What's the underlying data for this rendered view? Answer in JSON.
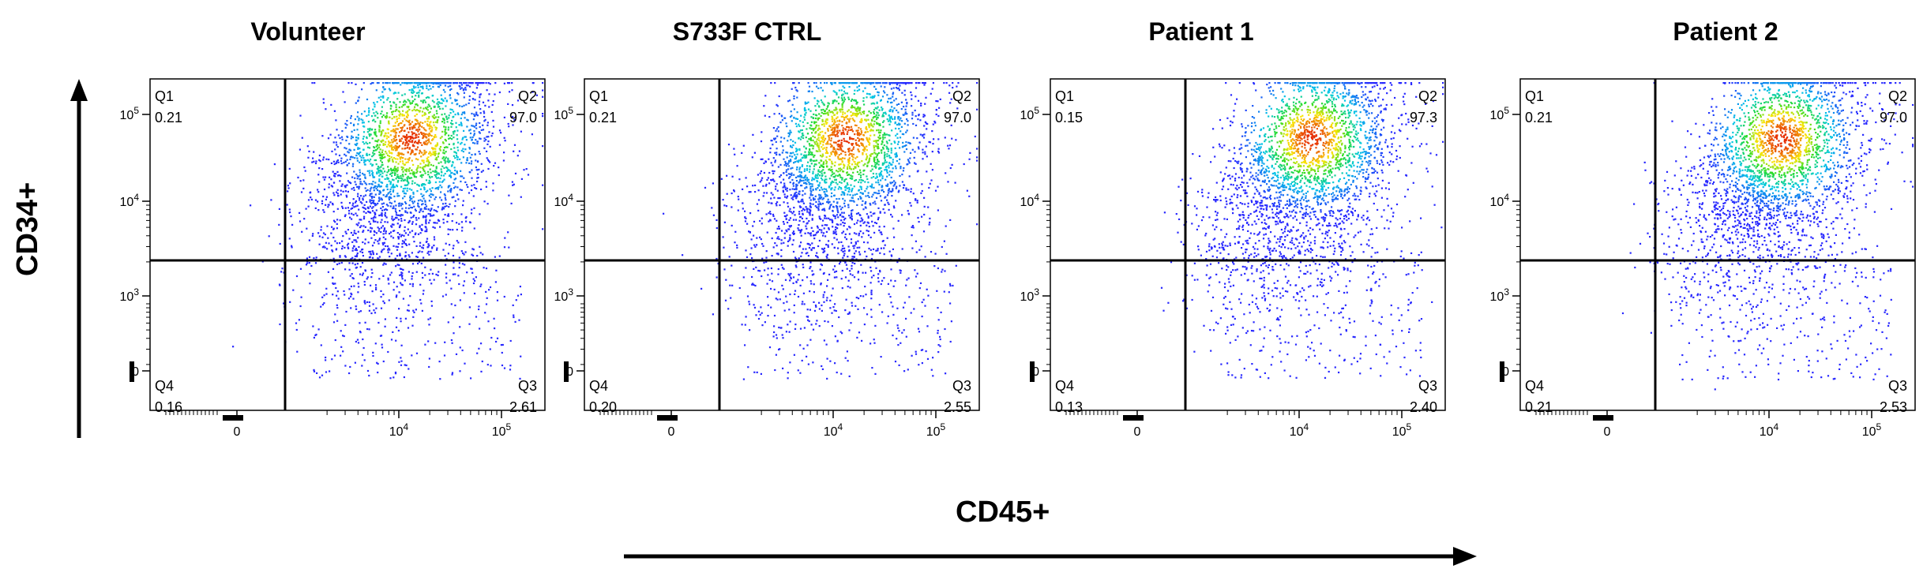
{
  "figure": {
    "y_axis_label": "CD34+",
    "x_axis_label": "CD45+"
  },
  "chart_data": [
    {
      "type": "scatter",
      "title": "Volunteer",
      "xlabel": "CD45+",
      "ylabel": "CD34+",
      "x_ticks": [
        "0",
        "10^4",
        "10^5"
      ],
      "y_ticks": [
        "0",
        "10^3",
        "10^4",
        "10^5"
      ],
      "quadrants": [
        {
          "label": "Q1",
          "value": "0.21"
        },
        {
          "label": "Q2",
          "value": "97.0"
        },
        {
          "label": "Q3",
          "value": "2.61"
        },
        {
          "label": "Q4",
          "value": "0.16"
        }
      ]
    },
    {
      "type": "scatter",
      "title": "S733F CTRL",
      "xlabel": "CD45+",
      "ylabel": "CD34+",
      "x_ticks": [
        "0",
        "10^4",
        "10^5"
      ],
      "y_ticks": [
        "0",
        "10^3",
        "10^4",
        "10^5"
      ],
      "quadrants": [
        {
          "label": "Q1",
          "value": "0.21"
        },
        {
          "label": "Q2",
          "value": "97.0"
        },
        {
          "label": "Q3",
          "value": "2.55"
        },
        {
          "label": "Q4",
          "value": "0.20"
        }
      ]
    },
    {
      "type": "scatter",
      "title": "Patient 1",
      "xlabel": "CD45+",
      "ylabel": "CD34+",
      "x_ticks": [
        "0",
        "10^4",
        "10^5"
      ],
      "y_ticks": [
        "0",
        "10^3",
        "10^4",
        "10^5"
      ],
      "quadrants": [
        {
          "label": "Q1",
          "value": "0.15"
        },
        {
          "label": "Q2",
          "value": "97.3"
        },
        {
          "label": "Q3",
          "value": "2.40"
        },
        {
          "label": "Q4",
          "value": "0.13"
        }
      ]
    },
    {
      "type": "scatter",
      "title": "Patient 2",
      "xlabel": "CD45+",
      "ylabel": "CD34+",
      "x_ticks": [
        "0",
        "10^4",
        "10^5"
      ],
      "y_ticks": [
        "0",
        "10^3",
        "10^4",
        "10^5"
      ],
      "quadrants": [
        {
          "label": "Q1",
          "value": "0.21"
        },
        {
          "label": "Q2",
          "value": "97.0"
        },
        {
          "label": "Q3",
          "value": "2.53"
        },
        {
          "label": "Q4",
          "value": "0.21"
        }
      ]
    }
  ]
}
